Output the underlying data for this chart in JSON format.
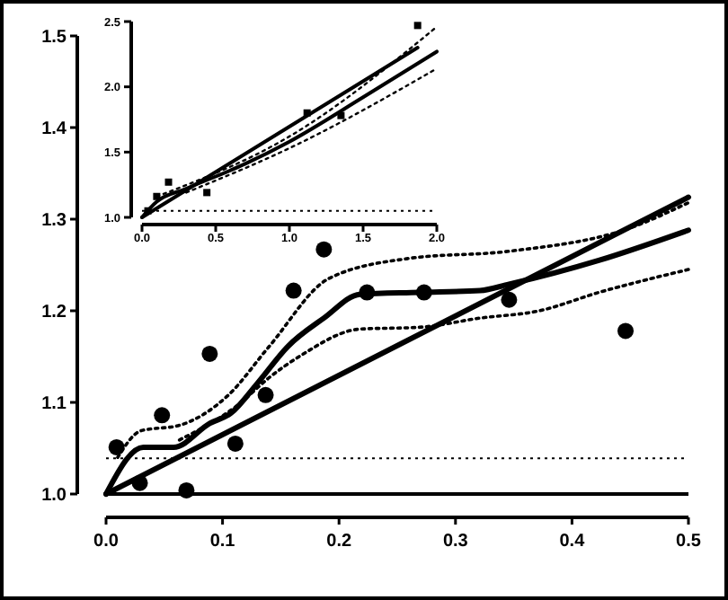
{
  "chart_data": [
    {
      "type": "scatter",
      "xlim": [
        0,
        0.5
      ],
      "ylim": [
        1.0,
        1.5
      ],
      "xticks": [
        {
          "value": 0,
          "label": "0.0"
        },
        {
          "value": 0.1,
          "label": "0.1"
        },
        {
          "value": 0.2,
          "label": "0.2"
        },
        {
          "value": 0.3,
          "label": "0.3"
        },
        {
          "value": 0.4,
          "label": "0.4"
        },
        {
          "value": 0.5,
          "label": "0.5"
        }
      ],
      "yticks": [
        {
          "value": 1.0,
          "label": "1.0"
        },
        {
          "value": 1.1,
          "label": "1.1"
        },
        {
          "value": 1.2,
          "label": "1.2"
        },
        {
          "value": 1.3,
          "label": "1.3"
        },
        {
          "value": 1.4,
          "label": "1.4"
        },
        {
          "value": 1.5,
          "label": "1.5"
        }
      ],
      "grid": false,
      "ref_lines": [
        {
          "axis": "y",
          "value": 1.0,
          "color": "#000000",
          "line_style": "solid"
        },
        {
          "axis": "y",
          "value": 1.039,
          "color": "#000000",
          "line_style": "dotted"
        }
      ],
      "series": [
        {
          "color": "#000000",
          "marker": "circle",
          "x": [
            0.009,
            0.029,
            0.048,
            0.069,
            0.089,
            0.111,
            0.137,
            0.161,
            0.187,
            0.224,
            0.273,
            0.346,
            0.446
          ],
          "values": [
            1.051,
            1.012,
            1.086,
            1.004,
            1.153,
            1.055,
            1.108,
            1.222,
            1.267,
            1.22,
            1.22,
            1.212,
            1.178
          ]
        },
        {
          "type": "line",
          "color": "#000000",
          "marker": "none",
          "line_style": "solid",
          "x": [
            0,
            0.5
          ],
          "values": [
            1.0,
            1.324
          ]
        },
        {
          "type": "line",
          "color": "#000000",
          "marker": "none",
          "line_style": "solid",
          "x": [
            0,
            0.032,
            0.058,
            0.089,
            0.107,
            0.13,
            0.156,
            0.187,
            0.218,
            0.269,
            0.321,
            0.346,
            0.423,
            0.5
          ],
          "values": [
            1.0,
            1.051,
            1.051,
            1.077,
            1.088,
            1.121,
            1.161,
            1.192,
            1.218,
            1.22,
            1.222,
            1.229,
            1.255,
            1.288
          ]
        },
        {
          "type": "line",
          "color": "#000000",
          "marker": "none",
          "line_style": "dotted",
          "x": [
            0.01,
            0.03,
            0.063,
            0.105,
            0.14,
            0.191,
            0.259,
            0.346,
            0.449,
            0.5
          ],
          "values": [
            1.04,
            1.069,
            1.075,
            1.108,
            1.161,
            1.235,
            1.257,
            1.265,
            1.29,
            1.318
          ]
        },
        {
          "type": "line",
          "color": "#000000",
          "marker": "none",
          "line_style": "dotted",
          "x": [
            0.063,
            0.114,
            0.14,
            0.167,
            0.218,
            0.269,
            0.321,
            0.372,
            0.423,
            0.5
          ],
          "values": [
            1.059,
            1.098,
            1.127,
            1.151,
            1.18,
            1.182,
            1.192,
            1.2,
            1.22,
            1.245
          ]
        }
      ]
    },
    {
      "type": "scatter",
      "xlim": [
        0,
        2
      ],
      "ylim": [
        1.0,
        2.5
      ],
      "xticks": [
        {
          "value": 0,
          "label": "0.0"
        },
        {
          "value": 0.5,
          "label": "0.5"
        },
        {
          "value": 1,
          "label": "1.0"
        },
        {
          "value": 1.5,
          "label": "1.5"
        },
        {
          "value": 2,
          "label": "2.0"
        }
      ],
      "yticks": [
        {
          "value": 1.0,
          "label": "1.0"
        },
        {
          "value": 1.5,
          "label": "1.5"
        },
        {
          "value": 2.0,
          "label": "2.0"
        },
        {
          "value": 2.5,
          "label": "2.5"
        }
      ],
      "grid": false,
      "ref_lines": [
        {
          "axis": "y",
          "value": 1.05,
          "color": "#000000",
          "line_style": "dotted"
        }
      ],
      "series": [
        {
          "color": "#000000",
          "marker": "square",
          "x": [
            0.04,
            0.1,
            0.18,
            0.44,
            1.12,
            1.35,
            1.87
          ],
          "values": [
            1.05,
            1.16,
            1.27,
            1.19,
            1.8,
            1.78,
            2.47
          ]
        },
        {
          "type": "line",
          "color": "#000000",
          "marker": "none",
          "line_style": "solid",
          "x": [
            0,
            1.87
          ],
          "values": [
            1.0,
            2.3
          ]
        },
        {
          "type": "line",
          "color": "#000000",
          "marker": "none",
          "line_style": "solid",
          "x": [
            0,
            0.1,
            0.3,
            0.7,
            1.0,
            1.5,
            2.0
          ],
          "values": [
            1.0,
            1.12,
            1.22,
            1.41,
            1.58,
            1.92,
            2.27
          ]
        },
        {
          "type": "line",
          "color": "#000000",
          "marker": "none",
          "line_style": "dotted",
          "x": [
            0.1,
            1.0,
            2.0
          ],
          "values": [
            1.16,
            1.62,
            2.46
          ]
        },
        {
          "type": "line",
          "color": "#000000",
          "marker": "none",
          "line_style": "dotted",
          "x": [
            0.3,
            1.0,
            2.0
          ],
          "values": [
            1.19,
            1.53,
            2.14
          ]
        }
      ]
    }
  ]
}
